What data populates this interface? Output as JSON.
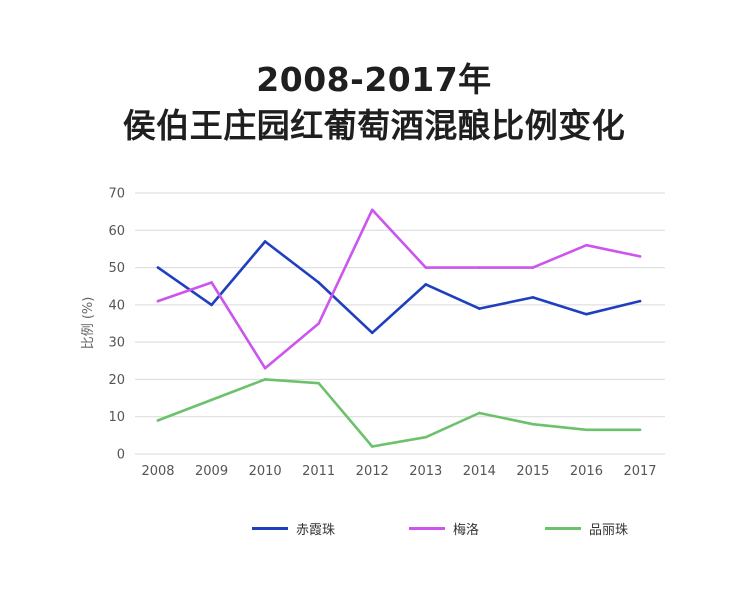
{
  "title_line1": "2008-2017年",
  "title_line2": "侯伯王庄园红葡萄酒混酿比例变化",
  "chart_data": {
    "type": "line",
    "title": "2008-2017年 侯伯王庄园红葡萄酒混酿比例变化",
    "xlabel": "",
    "ylabel": "比例 (%)",
    "ylim": [
      0,
      70
    ],
    "yticks": [
      "0",
      "10",
      "20",
      "30",
      "40",
      "50",
      "60",
      "70"
    ],
    "categories": [
      "2008",
      "2009",
      "2010",
      "2011",
      "2012",
      "2013",
      "2014",
      "2015",
      "2016",
      "2017"
    ],
    "grid": true,
    "legend_position": "bottom",
    "series": [
      {
        "name": "赤霞珠",
        "color": "#1f3fbf",
        "values": [
          50,
          40,
          57,
          46,
          32.5,
          45.5,
          39,
          42,
          37.5,
          41
        ]
      },
      {
        "name": "梅洛",
        "color": "#cc55ee",
        "values": [
          41,
          46,
          23,
          35,
          65.5,
          50,
          50,
          50,
          56,
          53
        ]
      },
      {
        "name": "品丽珠",
        "color": "#6cc26c",
        "values": [
          9,
          14.5,
          20,
          19,
          2,
          4.5,
          11,
          8,
          6.5,
          6.5
        ]
      }
    ]
  }
}
